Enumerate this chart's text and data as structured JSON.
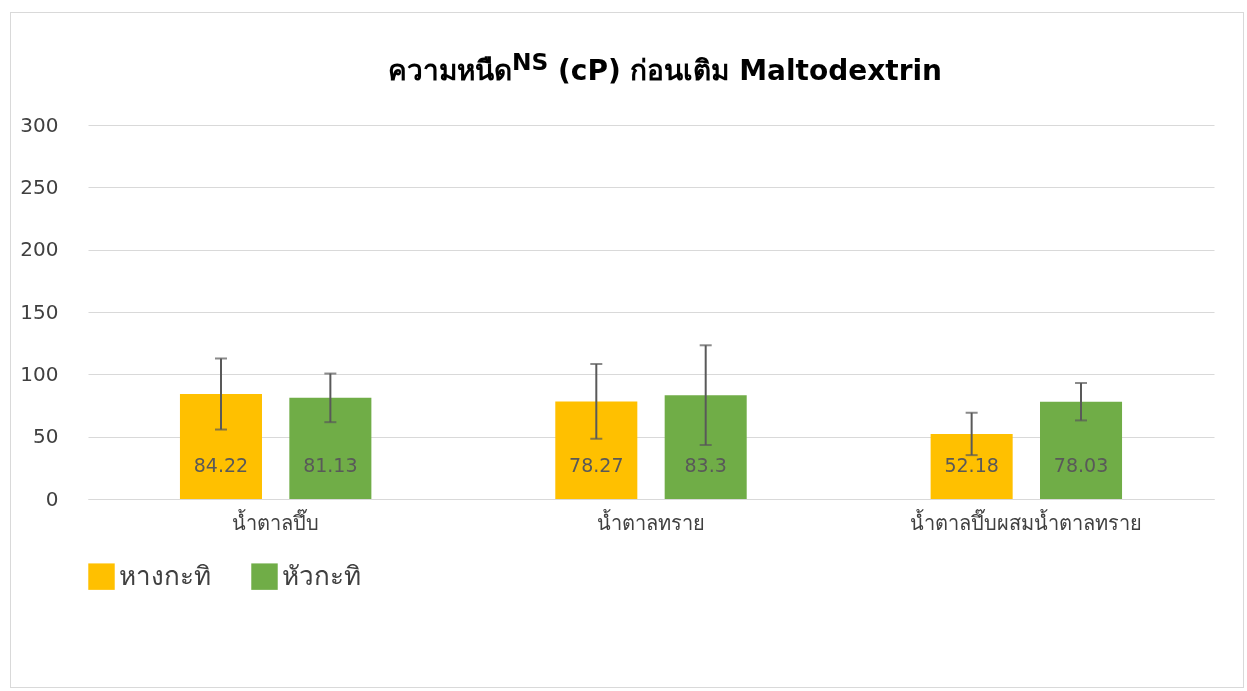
{
  "chart_data": {
    "type": "bar",
    "title": "ความหนืด$^{NS}$ (cP) ก่อนเติม Maltodextrin",
    "categories": [
      "น้ำตาลปึ๊บ",
      "น้ำตาลทราย",
      "น้ำตาลปึ๊บผสมน้ำตาลทราย"
    ],
    "series": [
      {
        "name": "หางกะทิ",
        "color": "#ffc000",
        "values": [
          84.22,
          78.27,
          52.18
        ],
        "errors": [
          28.5,
          30,
          17
        ]
      },
      {
        "name": "หัวกะทิ",
        "color": "#70ad47",
        "values": [
          81.13,
          83.3,
          78.03
        ],
        "errors": [
          19.5,
          40,
          15
        ]
      }
    ],
    "ylim": [
      0,
      300
    ],
    "yticks": [
      0,
      50,
      100,
      150,
      200,
      250,
      300
    ],
    "grid": "y",
    "legend": "bottom",
    "data_labels": true
  }
}
